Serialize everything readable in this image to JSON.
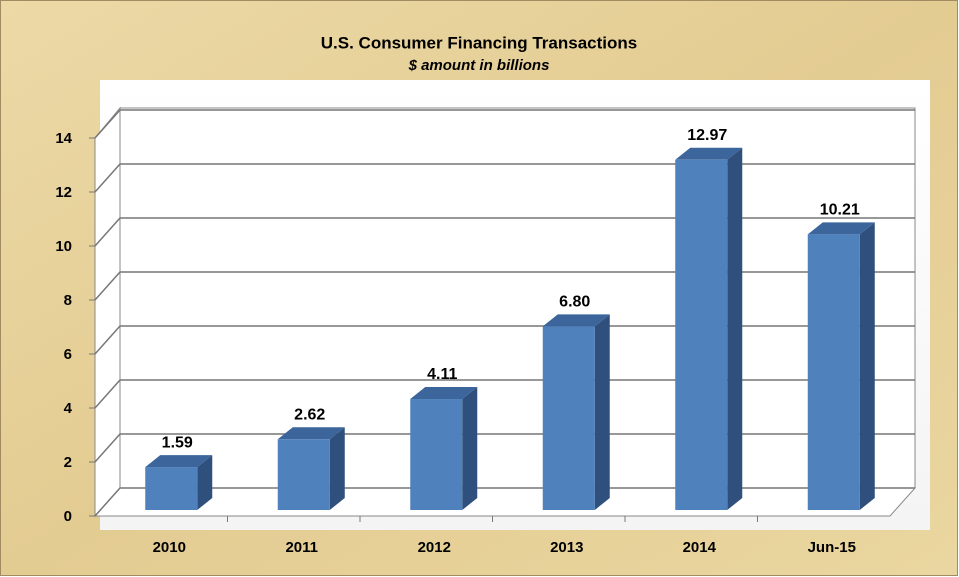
{
  "chart_data": {
    "type": "bar3d",
    "title": "U.S. Consumer Financing Transactions",
    "subtitle": "$ amount in billions",
    "categories": [
      "2010",
      "2011",
      "2012",
      "2013",
      "2014",
      "Jun-15"
    ],
    "values": [
      1.59,
      2.62,
      4.11,
      6.8,
      12.97,
      10.21
    ],
    "value_labels": [
      "1.59",
      "2.62",
      "4.11",
      "6.80",
      "12.97",
      "10.21"
    ],
    "color": "#4f81bd",
    "ylim": [
      0,
      14
    ],
    "yticks": [
      0,
      2,
      4,
      6,
      8,
      10,
      12,
      14
    ],
    "grid": true
  }
}
